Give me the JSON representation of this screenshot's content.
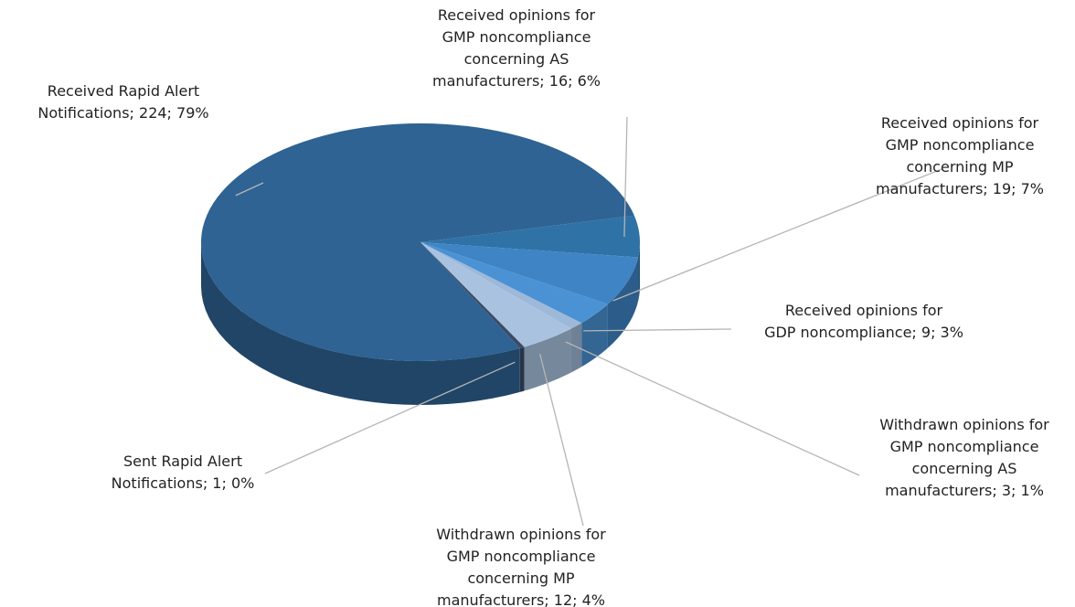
{
  "chart_data": {
    "type": "pie",
    "values": [
      16,
      19,
      9,
      3,
      12,
      1,
      224
    ],
    "value_labels": [
      "Received opinions for GMP noncompliance concerning AS manufacturers; 16; 6%",
      "Received opinions for GMP noncompliance concerning MP manufacturers; 19; 7%",
      "Received opinions for GDP noncompliance; 9; 3%",
      "Withdrawn opinions for GMP noncompliance concerning AS manufacturers; 3; 1%",
      "Withdrawn opinions for GMP noncompliance concerning MP manufacturers; 12; 4%",
      "Sent Rapid Alert Notifications; 1; 0%",
      "Received Rapid Alert Notifications; 224; 79%"
    ],
    "colors": [
      "#2f72a6",
      "#3f84c4",
      "#4a92d4",
      "#9db8d8",
      "#a9c2df",
      "#3b4b63",
      "#2e6393"
    ]
  }
}
